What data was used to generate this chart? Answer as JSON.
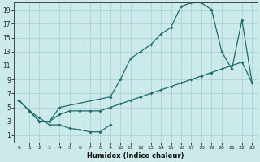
{
  "title": "",
  "xlabel": "Humidex (Indice chaleur)",
  "bg_color": "#cceaea",
  "line_color": "#1e6b6b",
  "grid_color": "#aad4d4",
  "xlim": [
    -0.5,
    23.5
  ],
  "ylim": [
    0,
    20
  ],
  "xticks": [
    0,
    1,
    2,
    3,
    4,
    5,
    6,
    7,
    8,
    9,
    10,
    11,
    12,
    13,
    14,
    15,
    16,
    17,
    18,
    19,
    20,
    21,
    22,
    23
  ],
  "yticks": [
    1,
    3,
    5,
    7,
    9,
    11,
    13,
    15,
    17,
    19
  ],
  "curve_upper_x": [
    0,
    1,
    2,
    3,
    4,
    9,
    10,
    11,
    12,
    13,
    14,
    15,
    16,
    17,
    18,
    19,
    20,
    21,
    22,
    23
  ],
  "curve_upper_y": [
    6,
    4.5,
    3,
    3,
    5,
    6.5,
    9,
    12,
    13,
    14,
    15.5,
    16.5,
    19.5,
    20,
    20,
    19,
    13,
    10.5,
    17.5,
    8.5
  ],
  "curve_mid_x": [
    0,
    1,
    2,
    3,
    4,
    5,
    6,
    7,
    8,
    9,
    10,
    11,
    12,
    13,
    14,
    15,
    16,
    17,
    18,
    19,
    20,
    21,
    22,
    23
  ],
  "curve_mid_y": [
    6,
    4.5,
    3,
    3,
    4,
    4.5,
    4.5,
    4.5,
    4.5,
    5,
    5.5,
    6,
    6.5,
    7,
    7.5,
    8,
    8.5,
    9,
    9.5,
    10,
    10.5,
    11,
    11.5,
    8.5
  ],
  "curve_lower_x": [
    0,
    1,
    2,
    3,
    4,
    5,
    6,
    7,
    8,
    9
  ],
  "curve_lower_y": [
    6,
    4.5,
    3.5,
    2.5,
    2.5,
    2,
    1.8,
    1.5,
    1.5,
    2.5
  ]
}
